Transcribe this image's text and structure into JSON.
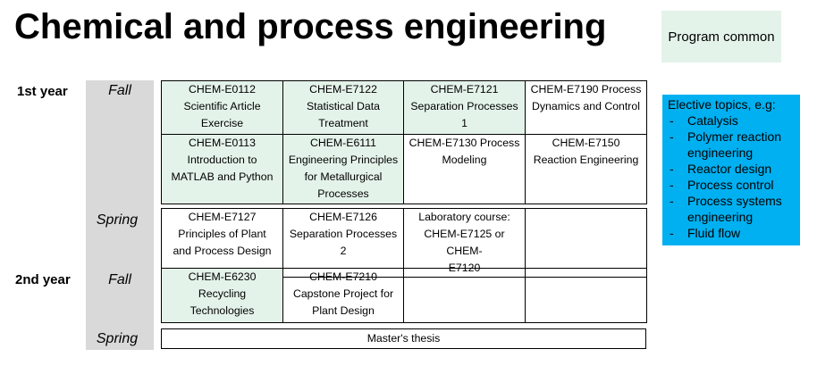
{
  "title": "Chemical and process engineering",
  "legend": {
    "program_common": "Program common"
  },
  "years": {
    "first": "1st year",
    "second": "2nd year"
  },
  "seasons": {
    "fall": "Fall",
    "spring": "Spring"
  },
  "y1_fall": [
    [
      {
        "text": "CHEM-E0112\nScientific Article\nExercise",
        "common": true
      },
      {
        "text": "CHEM-E7122\nStatistical Data\nTreatment",
        "common": true
      },
      {
        "text": "CHEM-E7121\nSeparation Processes\n1",
        "common": true
      },
      {
        "text": "CHEM-E7190 Process\nDynamics and Control",
        "common": false
      }
    ],
    [
      {
        "text": "CHEM-E0113\nIntroduction to\nMATLAB and Python",
        "common": true
      },
      {
        "text": "CHEM-E6111\nEngineering Principles\nfor Metallurgical\nProcesses",
        "common": true
      },
      {
        "text": "CHEM-E7130 Process\nModeling",
        "common": false
      },
      {
        "text": "CHEM-E7150\nReaction Engineering",
        "common": false
      }
    ]
  ],
  "y1_spring": [
    {
      "text": "CHEM-E7127\nPrinciples of Plant\nand Process Design",
      "common": false
    },
    {
      "text": "CHEM-E7126\nSeparation Processes\n2",
      "common": false
    },
    {
      "text": "Laboratory course:\nCHEM-E7125 or CHEM-\nE7120",
      "common": false
    },
    {
      "text": "",
      "common": false
    }
  ],
  "y2_fall": [
    {
      "text": "CHEM-E6230\nRecycling\nTechnologies",
      "common": true
    },
    {
      "text": "CHEM-E7210\nCapstone Project for\nPlant Design",
      "common": false
    },
    {
      "text": "",
      "common": false
    },
    {
      "text": "",
      "common": false
    }
  ],
  "y2_spring": {
    "thesis": "Master's thesis"
  },
  "elective": {
    "heading": "Elective topics, e.g:",
    "items": [
      "Catalysis",
      "Polymer reaction engineering",
      "Reactor design",
      "Process control",
      "Process systems engineering",
      "Fluid flow"
    ]
  },
  "colors": {
    "common": "#e4f3e9",
    "elective": "#00b0f0",
    "season_band": "#d9d9d9"
  }
}
